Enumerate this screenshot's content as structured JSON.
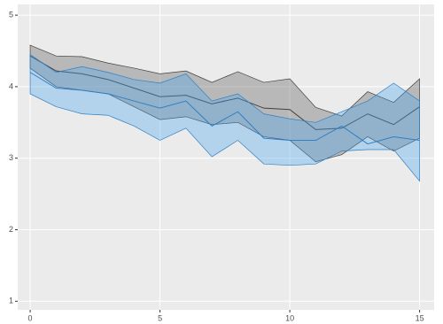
{
  "chart_data": {
    "type": "ribbon",
    "x": [
      0,
      1,
      2,
      3,
      4,
      5,
      6,
      7,
      8,
      9,
      10,
      11,
      12,
      13,
      14,
      15
    ],
    "xlim": [
      -0.48,
      15.56
    ],
    "ylim": [
      0.88,
      5.15
    ],
    "xticks": [
      0,
      5,
      10,
      15
    ],
    "yticks": [
      1,
      2,
      3,
      4,
      5
    ],
    "grid": true,
    "series": [
      {
        "color": "#404040",
        "fill": "#5a5a5a",
        "values": [
          4.43,
          4.22,
          4.18,
          4.1,
          3.98,
          3.86,
          3.88,
          3.76,
          3.84,
          3.7,
          3.68,
          3.4,
          3.42,
          3.62,
          3.47,
          3.72
        ],
        "upper": [
          4.58,
          4.43,
          4.42,
          4.33,
          4.26,
          4.18,
          4.22,
          4.06,
          4.21,
          4.06,
          4.11,
          3.71,
          3.59,
          3.93,
          3.78,
          4.11
        ],
        "lower": [
          4.26,
          4.0,
          3.95,
          3.9,
          3.72,
          3.54,
          3.58,
          3.47,
          3.5,
          3.3,
          3.25,
          2.95,
          3.05,
          3.3,
          3.1,
          3.28
        ]
      },
      {
        "color": "#2f80c4",
        "fill": "#4aa3ee",
        "values": [
          4.2,
          3.98,
          3.95,
          3.9,
          3.8,
          3.7,
          3.8,
          3.45,
          3.65,
          3.28,
          3.25,
          3.25,
          3.45,
          3.2,
          3.3,
          3.25
        ],
        "upper": [
          4.45,
          4.2,
          4.28,
          4.2,
          4.1,
          4.05,
          4.18,
          3.8,
          3.9,
          3.62,
          3.55,
          3.5,
          3.65,
          3.8,
          4.05,
          3.8
        ],
        "lower": [
          3.9,
          3.72,
          3.62,
          3.6,
          3.45,
          3.25,
          3.42,
          3.02,
          3.25,
          2.92,
          2.9,
          2.92,
          3.1,
          3.12,
          3.12,
          2.68
        ]
      }
    ]
  }
}
